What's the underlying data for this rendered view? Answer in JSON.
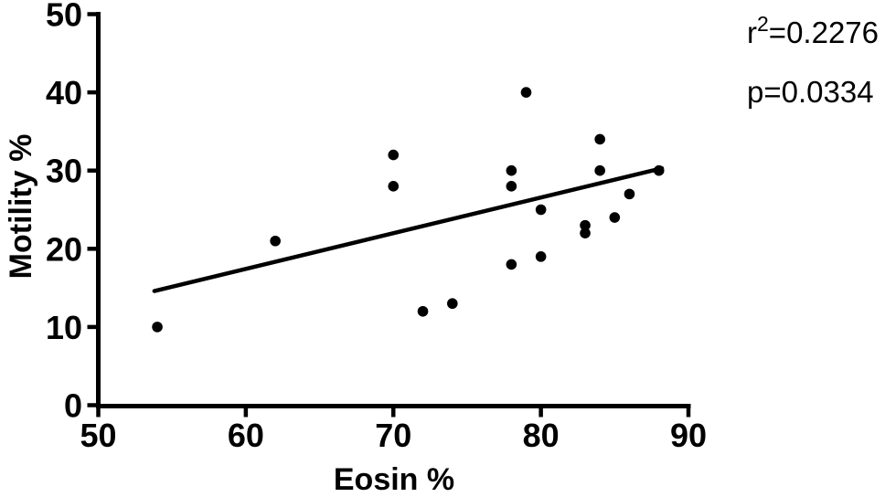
{
  "chart_data": {
    "type": "scatter",
    "title": "",
    "xlabel": "Eosin %",
    "ylabel": "Motility %",
    "xlim": [
      50,
      90
    ],
    "ylim": [
      0,
      50
    ],
    "x_ticks": [
      50,
      60,
      70,
      80,
      90
    ],
    "y_ticks": [
      0,
      10,
      20,
      30,
      40,
      50
    ],
    "grid": false,
    "legend": false,
    "marker_color": "#000000",
    "axis_color": "#000000",
    "background_color": "#ffffff",
    "points": [
      {
        "x": 54,
        "y": 10
      },
      {
        "x": 62,
        "y": 21
      },
      {
        "x": 70,
        "y": 28
      },
      {
        "x": 70,
        "y": 32
      },
      {
        "x": 72,
        "y": 12
      },
      {
        "x": 74,
        "y": 13
      },
      {
        "x": 78,
        "y": 18
      },
      {
        "x": 78,
        "y": 28
      },
      {
        "x": 78,
        "y": 30
      },
      {
        "x": 79,
        "y": 40
      },
      {
        "x": 80,
        "y": 19
      },
      {
        "x": 80,
        "y": 25
      },
      {
        "x": 83,
        "y": 22
      },
      {
        "x": 83,
        "y": 23
      },
      {
        "x": 84,
        "y": 30
      },
      {
        "x": 84,
        "y": 34
      },
      {
        "x": 85,
        "y": 24
      },
      {
        "x": 86,
        "y": 27
      },
      {
        "x": 88,
        "y": 30
      }
    ],
    "trendline": {
      "x1": 53.8,
      "y1": 14.6,
      "x2": 88.2,
      "y2": 30.3
    },
    "annotations": {
      "r_prefix": "r",
      "r_sup": "2",
      "r_rest": "=0.2276",
      "p_text": "p=0.0334"
    }
  }
}
